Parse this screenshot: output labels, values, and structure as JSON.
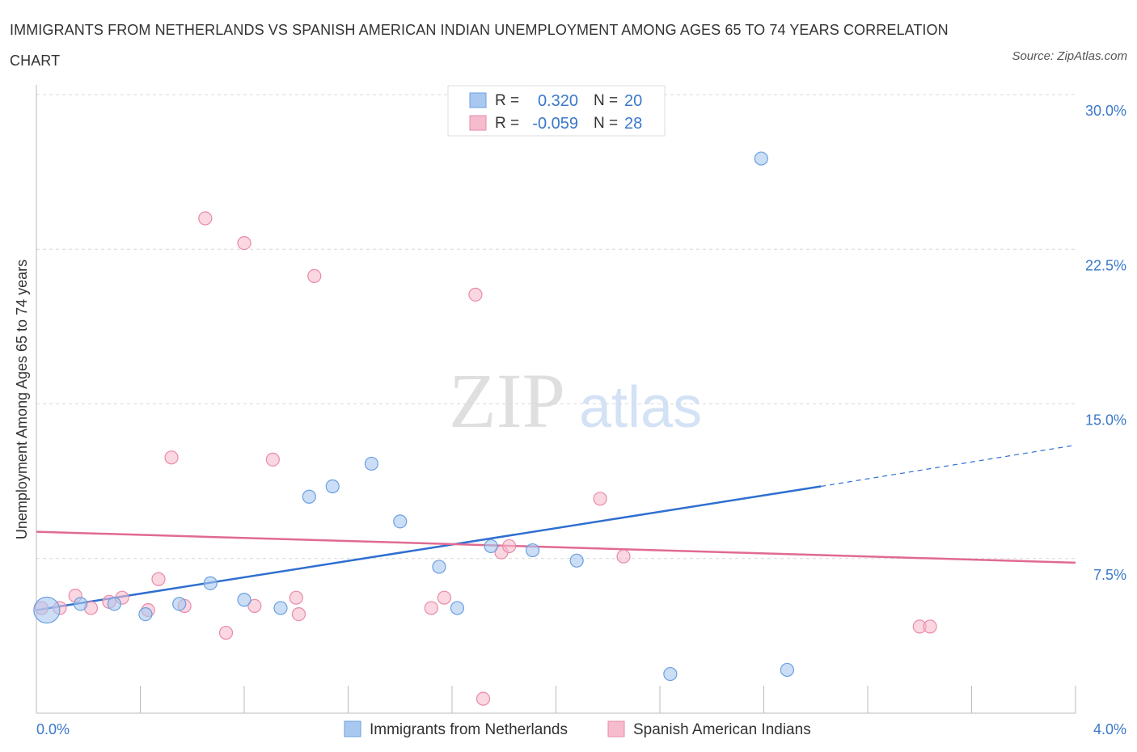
{
  "title": "IMMIGRANTS FROM NETHERLANDS VS SPANISH AMERICAN INDIAN UNEMPLOYMENT AMONG AGES 65 TO 74 YEARS CORRELATION CHART",
  "source": "Source: ZipAtlas.com",
  "watermark": {
    "zip": "ZIP",
    "atlas": "atlas"
  },
  "legend": {
    "rows": [
      {
        "r_label": "R =",
        "r_value": "0.320",
        "n_label": "N =",
        "n_value": "20",
        "color": "#a9c8f0"
      },
      {
        "r_label": "R =",
        "r_value": "-0.059",
        "n_label": "N =",
        "n_value": "28",
        "color": "#f4b8cb"
      }
    ]
  },
  "colors": {
    "blue_fill": "#a9c8f0",
    "blue_stroke": "#6a9fe0",
    "blue_line": "#2f6fd0",
    "pink_fill": "#f6bccd",
    "pink_stroke": "#e98aa8",
    "pink_line": "#e06a92",
    "grid": "#d8d8d8",
    "axis": "#bbbbbb"
  },
  "chart_data": {
    "type": "scatter",
    "xlabel": "",
    "ylabel": "Unemployment Among Ages 65 to 74 years",
    "xlim": [
      0,
      4.0
    ],
    "ylim": [
      0,
      30.0
    ],
    "x_tick_labels": [
      "0.0%",
      "4.0%"
    ],
    "y_ticks": [
      7.5,
      15.0,
      22.5,
      30.0
    ],
    "y_tick_labels": [
      "7.5%",
      "15.0%",
      "22.5%",
      "30.0%"
    ],
    "grid": "horizontal dashed",
    "legend_position": "top-center",
    "series": [
      {
        "name": "Immigrants from Netherlands",
        "points": [
          [
            0.04,
            5.0,
            "large"
          ],
          [
            0.17,
            5.3
          ],
          [
            0.3,
            5.3
          ],
          [
            0.42,
            4.8
          ],
          [
            0.55,
            5.3
          ],
          [
            0.67,
            6.3
          ],
          [
            0.8,
            5.5
          ],
          [
            0.94,
            5.1
          ],
          [
            1.05,
            10.5
          ],
          [
            1.14,
            11.0
          ],
          [
            1.29,
            12.1
          ],
          [
            1.4,
            9.3
          ],
          [
            1.55,
            7.1
          ],
          [
            1.62,
            5.1
          ],
          [
            1.75,
            8.1
          ],
          [
            1.91,
            7.9
          ],
          [
            2.08,
            7.4
          ],
          [
            2.44,
            1.9
          ],
          [
            2.79,
            26.9
          ],
          [
            2.89,
            2.1
          ]
        ],
        "trend": {
          "x0": 0.0,
          "y0": 5.0,
          "x1": 3.02,
          "y1": 11.0,
          "x_end_dashed": 4.0,
          "y_end_dashed": 13.0
        }
      },
      {
        "name": "Spanish American Indians",
        "points": [
          [
            0.02,
            5.1
          ],
          [
            0.09,
            5.1
          ],
          [
            0.15,
            5.7
          ],
          [
            0.21,
            5.1
          ],
          [
            0.28,
            5.4
          ],
          [
            0.33,
            5.6
          ],
          [
            0.43,
            5.0
          ],
          [
            0.47,
            6.5
          ],
          [
            0.52,
            12.4
          ],
          [
            0.57,
            5.2
          ],
          [
            0.65,
            24.0
          ],
          [
            0.73,
            3.9
          ],
          [
            0.8,
            22.8
          ],
          [
            0.84,
            5.2
          ],
          [
            0.91,
            12.3
          ],
          [
            1.0,
            5.6
          ],
          [
            1.01,
            4.8
          ],
          [
            1.07,
            21.2
          ],
          [
            1.52,
            5.1
          ],
          [
            1.57,
            5.6
          ],
          [
            1.69,
            20.3
          ],
          [
            1.72,
            0.7
          ],
          [
            1.79,
            7.8
          ],
          [
            1.82,
            8.1
          ],
          [
            2.17,
            10.4
          ],
          [
            2.26,
            7.6
          ],
          [
            3.4,
            4.2
          ],
          [
            3.44,
            4.2
          ]
        ],
        "trend": {
          "x0": 0.0,
          "y0": 8.8,
          "x1": 4.0,
          "y1": 7.3
        }
      }
    ]
  }
}
